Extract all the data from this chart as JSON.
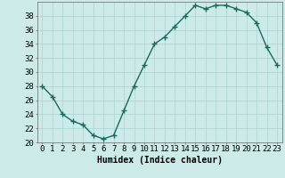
{
  "x": [
    0,
    1,
    2,
    3,
    4,
    5,
    6,
    7,
    8,
    9,
    10,
    11,
    12,
    13,
    14,
    15,
    16,
    17,
    18,
    19,
    20,
    21,
    22,
    23
  ],
  "y": [
    28,
    26.5,
    24,
    23,
    22.5,
    21,
    20.5,
    21,
    24.5,
    28,
    31,
    34,
    35,
    36.5,
    38,
    39.5,
    39,
    39.5,
    39.5,
    39,
    38.5,
    37,
    33.5,
    31
  ],
  "line_color": "#1a6b5a",
  "marker": "+",
  "marker_size": 4,
  "marker_linewidth": 1.0,
  "bg_color": "#cceae7",
  "grid_color": "#aad4d0",
  "xlabel": "Humidex (Indice chaleur)",
  "xlim": [
    -0.5,
    23.5
  ],
  "ylim": [
    20,
    40
  ],
  "ytick_values": [
    20,
    22,
    24,
    26,
    28,
    30,
    32,
    34,
    36,
    38
  ],
  "xlabel_fontsize": 7,
  "tick_fontsize": 6.5,
  "line_width": 1.0
}
